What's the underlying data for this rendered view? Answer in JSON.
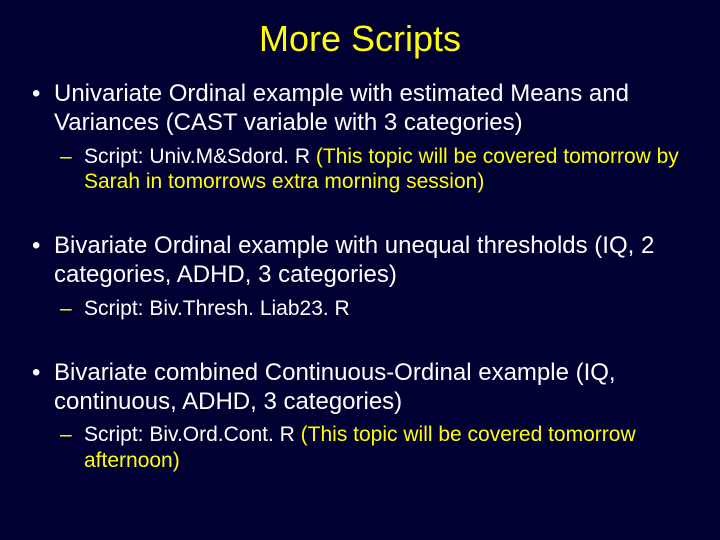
{
  "colors": {
    "background": "#000033",
    "title": "#ffff00",
    "body_text": "#ffffff",
    "accent_text": "#ffff00"
  },
  "typography": {
    "title_fontsize": 36,
    "bullet_fontsize": 24,
    "sub_fontsize": 21,
    "font_family": "Arial"
  },
  "title": "More Scripts",
  "items": [
    {
      "text": "Univariate Ordinal example with estimated Means and Variances (CAST variable with 3 categories)",
      "sub_prefix": "Script: Univ.M&Sdord. R ",
      "sub_note": "(This topic will be covered tomorrow by Sarah in tomorrows extra morning session)"
    },
    {
      "text": "Bivariate Ordinal example with unequal thresholds (IQ, 2 categories, ADHD, 3 categories)",
      "sub_prefix": "Script: Biv.Thresh. Liab23. R",
      "sub_note": ""
    },
    {
      "text": "Bivariate combined Continuous-Ordinal example (IQ, continuous, ADHD, 3 categories)",
      "sub_prefix": "Script: Biv.Ord.Cont. R ",
      "sub_note": "(This topic will be covered tomorrow afternoon)"
    }
  ]
}
